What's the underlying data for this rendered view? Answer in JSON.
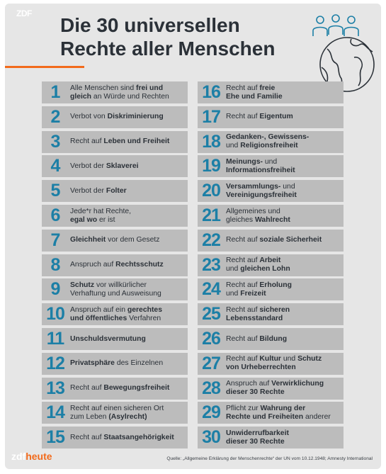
{
  "brand_top": "ZDF",
  "title": {
    "line1": "Die 30 universellen",
    "line2": "Rechte aller Menschen"
  },
  "brand_bottom": {
    "prefix": "zdf",
    "suffix": "heute"
  },
  "source": "Quelle: „Allgemeine Erklärung der Menschenrechte“ der UN vom 10.12.1948; Amnesty International",
  "icon": "people-on-globe-icon",
  "colors": {
    "number": "#1c7fa6",
    "box": "#bcbcbc",
    "background": "#e6e6e6",
    "accent": "#f26a1b",
    "text": "#2b3138"
  },
  "rights": [
    {
      "n": "1",
      "parts": [
        {
          "t": "Alle Menschen sind "
        },
        {
          "t": "frei und",
          "b": true
        },
        {
          "t": "\n"
        },
        {
          "t": "gleich",
          "b": true
        },
        {
          "t": " an Würde und Rechten"
        }
      ]
    },
    {
      "n": "2",
      "parts": [
        {
          "t": "Verbot von "
        },
        {
          "t": "Diskriminierung",
          "b": true
        }
      ]
    },
    {
      "n": "3",
      "parts": [
        {
          "t": "Recht auf "
        },
        {
          "t": "Leben und Freiheit",
          "b": true
        }
      ]
    },
    {
      "n": "4",
      "parts": [
        {
          "t": "Verbot der "
        },
        {
          "t": "Sklaverei",
          "b": true
        }
      ]
    },
    {
      "n": "5",
      "parts": [
        {
          "t": "Verbot der "
        },
        {
          "t": "Folter",
          "b": true
        }
      ]
    },
    {
      "n": "6",
      "parts": [
        {
          "t": "Jede*r hat Rechte,\n"
        },
        {
          "t": "egal wo",
          "b": true
        },
        {
          "t": " er ist"
        }
      ]
    },
    {
      "n": "7",
      "parts": [
        {
          "t": "Gleichheit",
          "b": true
        },
        {
          "t": " vor dem Gesetz"
        }
      ]
    },
    {
      "n": "8",
      "parts": [
        {
          "t": "Anspruch auf "
        },
        {
          "t": "Rechtsschutz",
          "b": true
        }
      ]
    },
    {
      "n": "9",
      "parts": [
        {
          "t": "Schutz",
          "b": true
        },
        {
          "t": " vor willkürlicher\nVerhaftung und Ausweisung"
        }
      ]
    },
    {
      "n": "10",
      "parts": [
        {
          "t": "Anspruch auf ein "
        },
        {
          "t": "gerechtes",
          "b": true
        },
        {
          "t": "\n"
        },
        {
          "t": "und öffentliches",
          "b": true
        },
        {
          "t": " Verfahren"
        }
      ]
    },
    {
      "n": "11",
      "parts": [
        {
          "t": "Unschuldsvermutung",
          "b": true
        }
      ]
    },
    {
      "n": "12",
      "parts": [
        {
          "t": "Privatsphäre",
          "b": true
        },
        {
          "t": " des Einzelnen"
        }
      ]
    },
    {
      "n": "13",
      "parts": [
        {
          "t": "Recht auf "
        },
        {
          "t": "Bewegungsfreiheit",
          "b": true
        }
      ]
    },
    {
      "n": "14",
      "parts": [
        {
          "t": "Recht auf einen sicheren Ort\nzum Leben "
        },
        {
          "t": "(Asylrecht)",
          "b": true
        }
      ]
    },
    {
      "n": "15",
      "parts": [
        {
          "t": "Recht auf "
        },
        {
          "t": "Staatsangehörigkeit",
          "b": true
        }
      ]
    },
    {
      "n": "16",
      "parts": [
        {
          "t": "Recht auf "
        },
        {
          "t": "freie",
          "b": true
        },
        {
          "t": "\n"
        },
        {
          "t": "Ehe und Familie",
          "b": true
        }
      ]
    },
    {
      "n": "17",
      "parts": [
        {
          "t": "Recht auf "
        },
        {
          "t": "Eigentum",
          "b": true
        }
      ]
    },
    {
      "n": "18",
      "parts": [
        {
          "t": "Gedanken-, Gewissens-\n",
          "b": true
        },
        {
          "t": "und "
        },
        {
          "t": "Religionsfreiheit",
          "b": true
        }
      ]
    },
    {
      "n": "19",
      "parts": [
        {
          "t": "Meinungs-",
          "b": true
        },
        {
          "t": " und\n"
        },
        {
          "t": "Informationsfreiheit",
          "b": true
        }
      ]
    },
    {
      "n": "20",
      "parts": [
        {
          "t": "Versammlungs-",
          "b": true
        },
        {
          "t": " und\n"
        },
        {
          "t": "Vereinigungsfreiheit",
          "b": true
        }
      ]
    },
    {
      "n": "21",
      "parts": [
        {
          "t": "Allgemeines und\ngleiches "
        },
        {
          "t": "Wahlrecht",
          "b": true
        }
      ]
    },
    {
      "n": "22",
      "parts": [
        {
          "t": "Recht auf "
        },
        {
          "t": "soziale Sicherheit",
          "b": true
        }
      ]
    },
    {
      "n": "23",
      "parts": [
        {
          "t": "Recht auf "
        },
        {
          "t": "Arbeit",
          "b": true
        },
        {
          "t": "\nund "
        },
        {
          "t": "gleichen Lohn",
          "b": true
        }
      ]
    },
    {
      "n": "24",
      "parts": [
        {
          "t": "Recht auf "
        },
        {
          "t": "Erholung",
          "b": true
        },
        {
          "t": "\nund "
        },
        {
          "t": "Freizeit",
          "b": true
        }
      ]
    },
    {
      "n": "25",
      "parts": [
        {
          "t": "Recht auf "
        },
        {
          "t": "sicheren",
          "b": true
        },
        {
          "t": "\n"
        },
        {
          "t": "Lebensstandard",
          "b": true
        }
      ]
    },
    {
      "n": "26",
      "parts": [
        {
          "t": "Recht auf "
        },
        {
          "t": "Bildung",
          "b": true
        }
      ]
    },
    {
      "n": "27",
      "parts": [
        {
          "t": "Recht auf "
        },
        {
          "t": "Kultur",
          "b": true
        },
        {
          "t": " und "
        },
        {
          "t": "Schutz",
          "b": true
        },
        {
          "t": "\n"
        },
        {
          "t": "von Urheberrechten",
          "b": true
        }
      ]
    },
    {
      "n": "28",
      "parts": [
        {
          "t": "Anspruch auf "
        },
        {
          "t": "Verwirklichung",
          "b": true
        },
        {
          "t": "\n"
        },
        {
          "t": "dieser 30 Rechte",
          "b": true
        }
      ]
    },
    {
      "n": "29",
      "parts": [
        {
          "t": "Pflicht zur "
        },
        {
          "t": "Wahrung der",
          "b": true
        },
        {
          "t": "\n"
        },
        {
          "t": "Rechte und Freiheiten",
          "b": true
        },
        {
          "t": " anderer"
        }
      ]
    },
    {
      "n": "30",
      "parts": [
        {
          "t": "Unwiderrufbarkeit\ndieser 30 Rechte",
          "b": true
        }
      ]
    }
  ]
}
